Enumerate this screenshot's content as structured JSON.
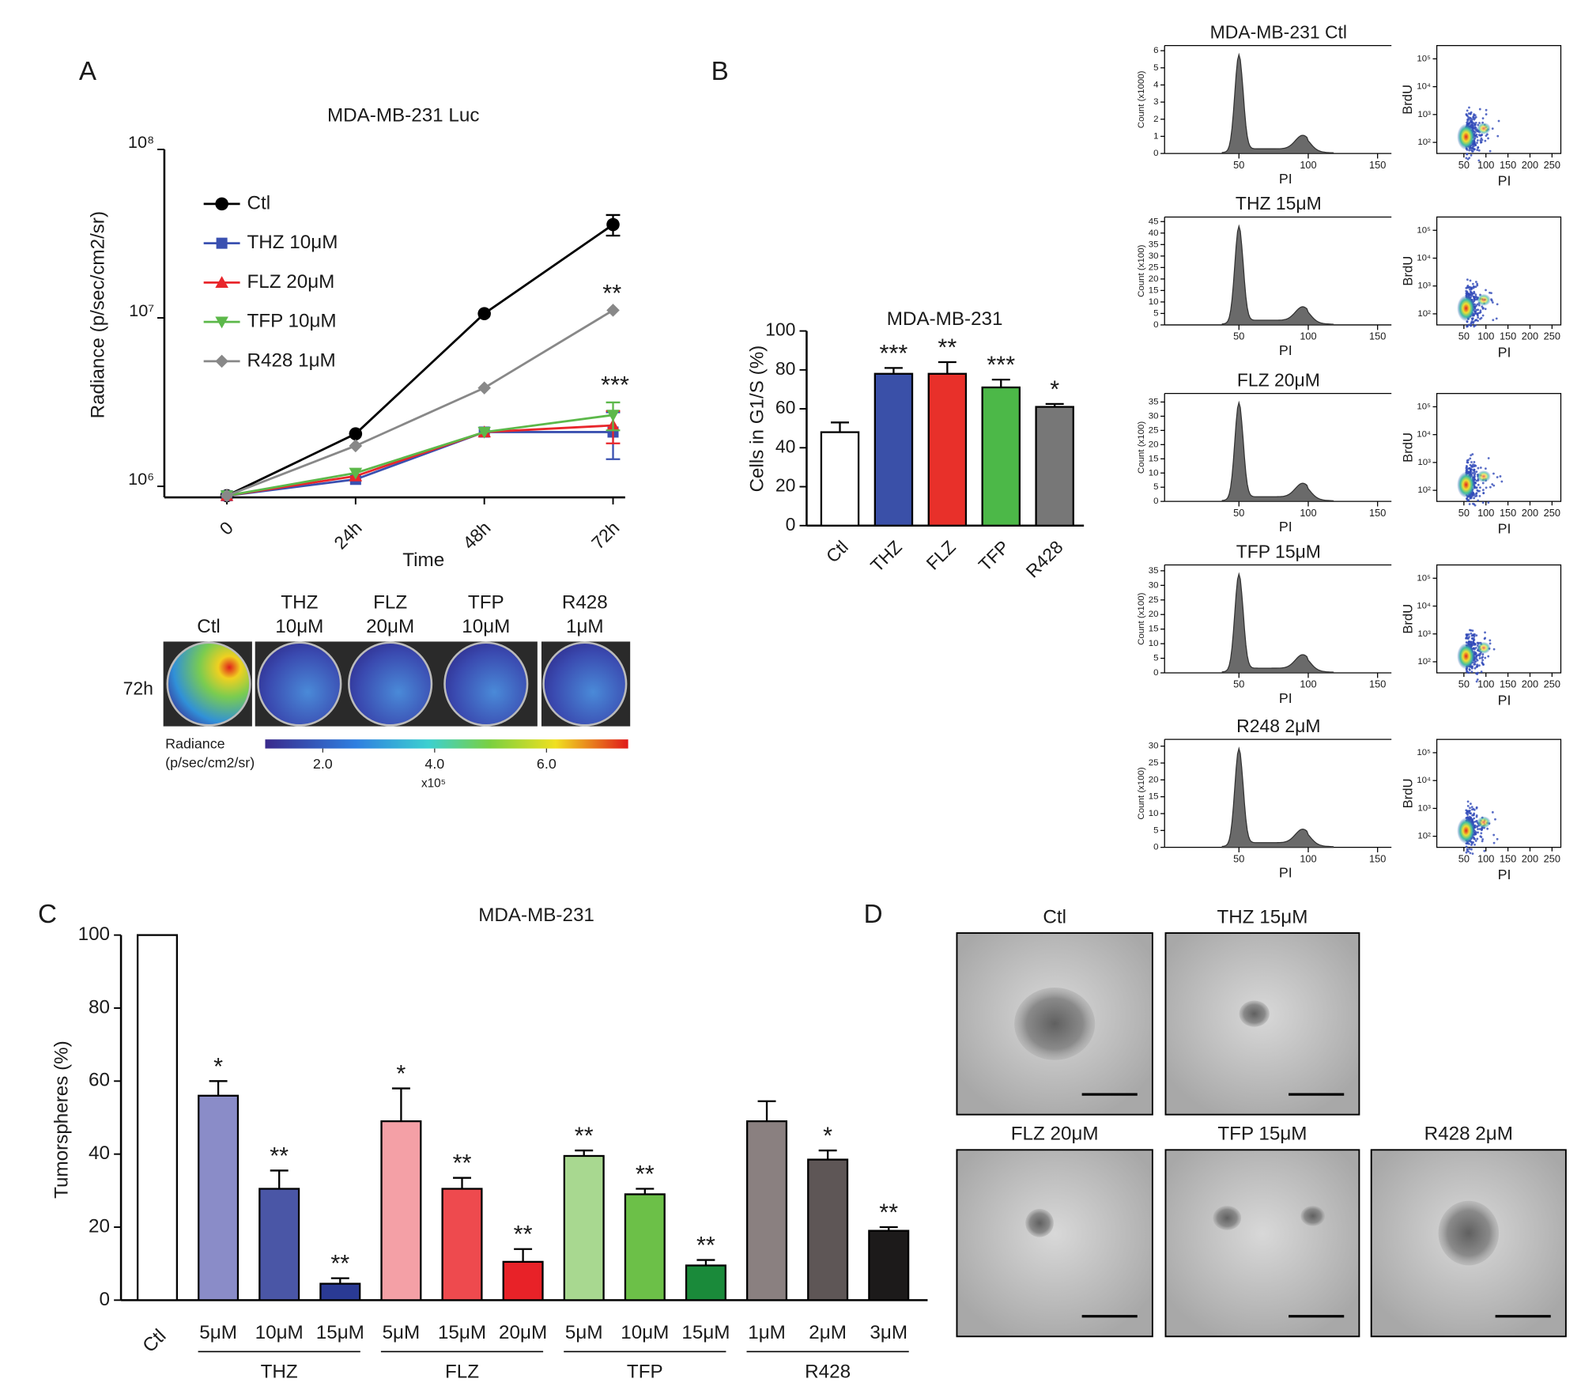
{
  "panel_labels": [
    "A",
    "B",
    "C",
    "D"
  ],
  "chart_data": [
    {
      "type": "line",
      "title": "MDA-MB-231 Luc",
      "y_label": "Radiance (p/sec/cm2/sr)",
      "x_label": "Time",
      "log_scale": true,
      "categories": [
        "0",
        "24h",
        "48h",
        "72h"
      ],
      "ylim": [
        860000,
        100000000
      ],
      "yticks": [
        {
          "value": 1000000,
          "label": "10⁶"
        },
        {
          "value": 10000000,
          "label": "10⁷"
        },
        {
          "value": 100000000,
          "label": "10⁸"
        }
      ],
      "series": [
        {
          "name": "Ctl",
          "color": "#000000",
          "marker": "circle",
          "values": [
            880000,
            2050000,
            10600000,
            35800000
          ],
          "errors": [
            null,
            null,
            null,
            5000000
          ]
        },
        {
          "name": "THZ 10μM",
          "color": "#3a50b0",
          "marker": "square",
          "values": [
            880000,
            1100000,
            2100000,
            2100000
          ],
          "errors": [
            null,
            null,
            null,
            650000
          ]
        },
        {
          "name": "FLZ 20μM",
          "color": "#e8262b",
          "marker": "triangle",
          "values": [
            880000,
            1150000,
            2100000,
            2300000
          ],
          "errors": [
            null,
            null,
            null,
            500000
          ]
        },
        {
          "name": "TFP 10μM",
          "color": "#5cb84a",
          "marker": "triangle-down",
          "values": [
            880000,
            1200000,
            2100000,
            2650000
          ],
          "errors": [
            null,
            null,
            null,
            500000
          ]
        },
        {
          "name": "R428 1μM",
          "color": "#888888",
          "marker": "diamond",
          "values": [
            880000,
            1740000,
            3840000,
            11100000
          ]
        }
      ],
      "annotations": [
        "**",
        "***"
      ]
    },
    {
      "type": "bar",
      "title": "MDA-MB-231",
      "y_label": "Cells in G1/S (%)",
      "categories": [
        "Ctl",
        "THZ",
        "FLZ",
        "TFP",
        "R428"
      ],
      "values": [
        48,
        78,
        78,
        71,
        61
      ],
      "errors": [
        5,
        3,
        6,
        4,
        1.5
      ],
      "colors": [
        "#ffffff",
        "#3a50a8",
        "#e8302a",
        "#4cb848",
        "#777777"
      ],
      "significance": [
        null,
        "***",
        "**",
        "***",
        "*"
      ],
      "ylim": [
        0,
        100
      ],
      "yticks": [
        0,
        20,
        40,
        60,
        80,
        100
      ]
    },
    {
      "type": "bar",
      "title": "MDA-MB-231",
      "y_label": "Tumorspheres (%)",
      "categories": [
        "Ctl",
        "5μM",
        "10μM",
        "15μM",
        "5μM",
        "15μM",
        "20μM",
        "5μM",
        "10μM",
        "15μM",
        "1μM",
        "2μM",
        "3μM"
      ],
      "groups": [
        "THZ",
        "FLZ",
        "TFP",
        "R428"
      ],
      "values": [
        100,
        56,
        30.5,
        4.5,
        49,
        30.5,
        10.5,
        39.5,
        29,
        9.5,
        49,
        38.5,
        19
      ],
      "errors": [
        0,
        4,
        5,
        1.5,
        9,
        3,
        3.5,
        1.5,
        1.5,
        1.5,
        5.5,
        2.5,
        1
      ],
      "colors": [
        "#ffffff",
        "#8a8cc8",
        "#4a56a6",
        "#2a3a94",
        "#f4a0a6",
        "#ee4a4e",
        "#e82228",
        "#a8d890",
        "#6cc048",
        "#1a8a3a",
        "#8a8080",
        "#5e5656",
        "#1c1a1a"
      ],
      "significance": [
        null,
        "*",
        "**",
        "**",
        "*",
        "**",
        "**",
        "**",
        "**",
        "**",
        null,
        "*",
        "**"
      ],
      "ylim": [
        0,
        100
      ],
      "yticks": [
        0,
        20,
        40,
        60,
        80,
        100
      ]
    }
  ],
  "imaging": {
    "labels": [
      [
        "Ctl"
      ],
      [
        "THZ",
        "10μM"
      ],
      [
        "FLZ",
        "20μM"
      ],
      [
        "TFP",
        "10μM"
      ],
      [
        "R428",
        "1μM"
      ]
    ],
    "row_label": "72h",
    "colorbar_label": [
      "Radiance",
      "(p/sec/cm2/sr)"
    ],
    "colorbar_lim": [
      0.97,
      7.46
    ],
    "colorbar_ticks": [
      {
        "value": 2,
        "label": "2.0"
      },
      {
        "value": 4,
        "label": "4.0"
      },
      {
        "value": 6,
        "label": "6.0"
      }
    ],
    "colorbar_unit": "x10⁵"
  },
  "flow": {
    "x_label": "PI",
    "scatter_y_label": "BrdU",
    "hist_xlim": [
      0,
      160
    ],
    "hist_xticks": [
      50,
      100,
      150
    ],
    "scatter_xlim": [
      0,
      270
    ],
    "scatter_xticks": [
      50,
      100,
      150,
      200,
      250
    ],
    "scatter_ylim": [
      40,
      300000
    ],
    "scatter_yticks": [
      {
        "value": 100,
        "label": "10²"
      },
      {
        "value": 1000,
        "label": "10³"
      },
      {
        "value": 10000,
        "label": "10⁴"
      },
      {
        "value": 100000,
        "label": "10⁵"
      }
    ],
    "panels": [
      {
        "title": "MDA-MB-231 Ctl",
        "y_label": "Count (x1000)",
        "ylim": [
          0,
          6.3
        ],
        "yticks": [
          0,
          1,
          2,
          3,
          4,
          5,
          6
        ]
      },
      {
        "title": "THZ 15μM",
        "y_label": "Count (x100)",
        "ylim": [
          0,
          47
        ],
        "yticks": [
          0,
          5,
          10,
          15,
          20,
          25,
          30,
          35,
          40,
          45
        ]
      },
      {
        "title": "FLZ 20μM",
        "y_label": "Count (x100)",
        "ylim": [
          0,
          38
        ],
        "yticks": [
          0,
          5,
          10,
          15,
          20,
          25,
          30,
          35
        ]
      },
      {
        "title": "TFP 15μM",
        "y_label": "Count (x100)",
        "ylim": [
          0,
          37
        ],
        "yticks": [
          0,
          5,
          10,
          15,
          20,
          25,
          30,
          35
        ]
      },
      {
        "title": "R248 2μM",
        "y_label": "Count (x100)",
        "ylim": [
          0,
          32
        ],
        "yticks": [
          0,
          5,
          10,
          15,
          20,
          25,
          30
        ]
      }
    ]
  },
  "spheres": {
    "labels": [
      "Ctl",
      "THZ 15μM",
      "FLZ 20μM",
      "TFP 15μM",
      "R428 2μM"
    ]
  }
}
